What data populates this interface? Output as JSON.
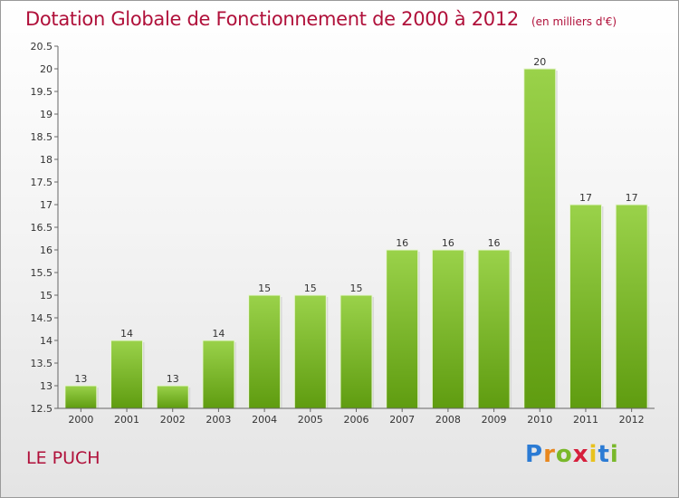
{
  "chart_data": {
    "type": "bar",
    "title": "Dotation Globale de Fonctionnement de 2000 à 2012",
    "unit_note": "(en milliers d'€)",
    "categories": [
      "2000",
      "2001",
      "2002",
      "2003",
      "2004",
      "2005",
      "2006",
      "2007",
      "2008",
      "2009",
      "2010",
      "2011",
      "2012"
    ],
    "values": [
      13,
      14,
      13,
      14,
      15,
      15,
      15,
      16,
      16,
      16,
      20,
      17,
      17
    ],
    "data_labels": [
      "13",
      "14",
      "13",
      "14",
      "15",
      "15",
      "15",
      "16",
      "16",
      "16",
      "20",
      "17",
      "17"
    ],
    "y_ticks": [
      "12.5",
      "13",
      "13.5",
      "14",
      "14.5",
      "15",
      "15.5",
      "16",
      "16.5",
      "17",
      "17.5",
      "18",
      "18.5",
      "19",
      "19.5",
      "20",
      "20.5"
    ],
    "ylim": [
      12.5,
      20.5
    ],
    "xlabel": "",
    "ylabel": "",
    "grid": false,
    "bar_color": "#7cbc2c"
  },
  "footer": {
    "commune": "LE PUCH",
    "logo": "Proxiti"
  }
}
